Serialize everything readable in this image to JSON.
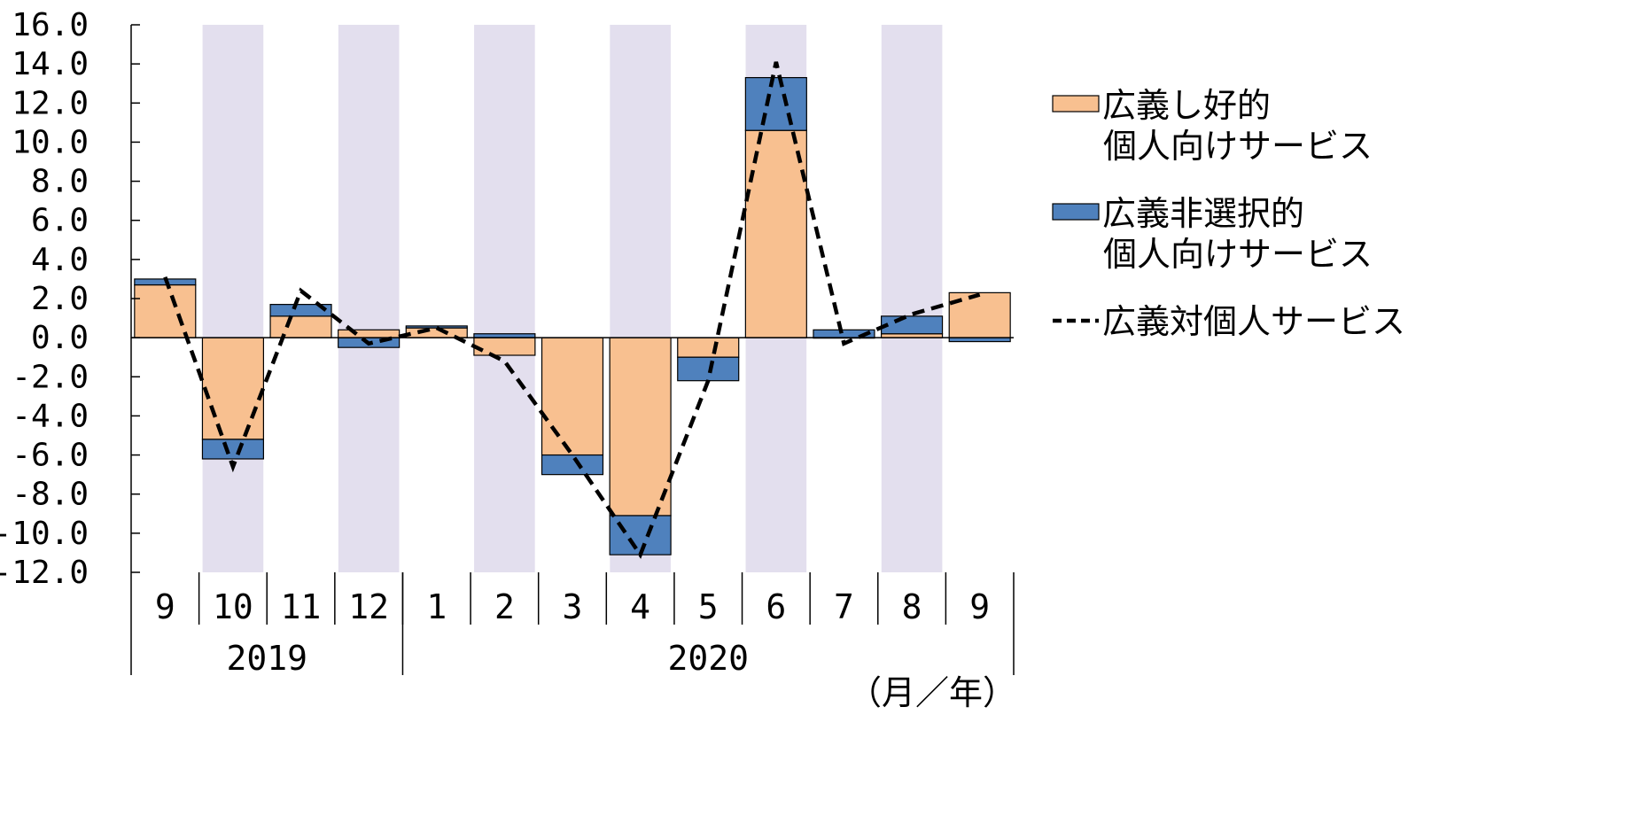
{
  "chart_data": {
    "type": "bar",
    "stacked": true,
    "ylim": [
      -12,
      16
    ],
    "yticks": [
      "16.0",
      "14.0",
      "12.0",
      "10.0",
      "8.0",
      "6.0",
      "4.0",
      "2.0",
      "0.0",
      "-2.0",
      "-4.0",
      "-6.0",
      "-8.0",
      "-10.0",
      "-12.0"
    ],
    "categories": [
      "9",
      "10",
      "11",
      "12",
      "1",
      "2",
      "3",
      "4",
      "5",
      "6",
      "7",
      "8",
      "9"
    ],
    "year_groups": [
      {
        "label": "2019",
        "start": 0,
        "end": 3
      },
      {
        "label": "2020",
        "start": 4,
        "end": 12
      }
    ],
    "shaded_categories": [
      1,
      3,
      5,
      7,
      9,
      11
    ],
    "xlabel": "（月／年）",
    "grid": false,
    "legend_position": "right",
    "series": [
      {
        "name": "広義し好的個人向けサービス",
        "legend_lines": [
          "広義し好的",
          "個人向けサービス"
        ],
        "kind": "bar",
        "color": "#f8c090",
        "values": [
          2.7,
          -5.2,
          1.1,
          0.4,
          0.5,
          -0.9,
          -6.0,
          -9.1,
          -1.0,
          10.6,
          0.0,
          0.2,
          2.3
        ]
      },
      {
        "name": "広義非選択的個人向けサービス",
        "legend_lines": [
          "広義非選択的",
          "個人向けサービス"
        ],
        "kind": "bar",
        "color": "#4f81bd",
        "values": [
          0.3,
          -1.0,
          0.6,
          -0.5,
          0.1,
          0.2,
          -1.0,
          -2.0,
          -1.2,
          2.7,
          0.4,
          0.9,
          -0.2
        ]
      },
      {
        "name": "広義対個人サービス",
        "legend_lines": [
          "広義対個人サービス"
        ],
        "kind": "line",
        "style": "dashed",
        "color": "#000000",
        "values": [
          3.1,
          -6.6,
          2.4,
          -0.3,
          0.5,
          -1.2,
          -6.0,
          -11.1,
          -2.2,
          14.1,
          -0.3,
          1.2,
          2.2
        ]
      }
    ],
    "colors": {
      "shade": "#e3dfee",
      "axis": "#000000"
    }
  }
}
